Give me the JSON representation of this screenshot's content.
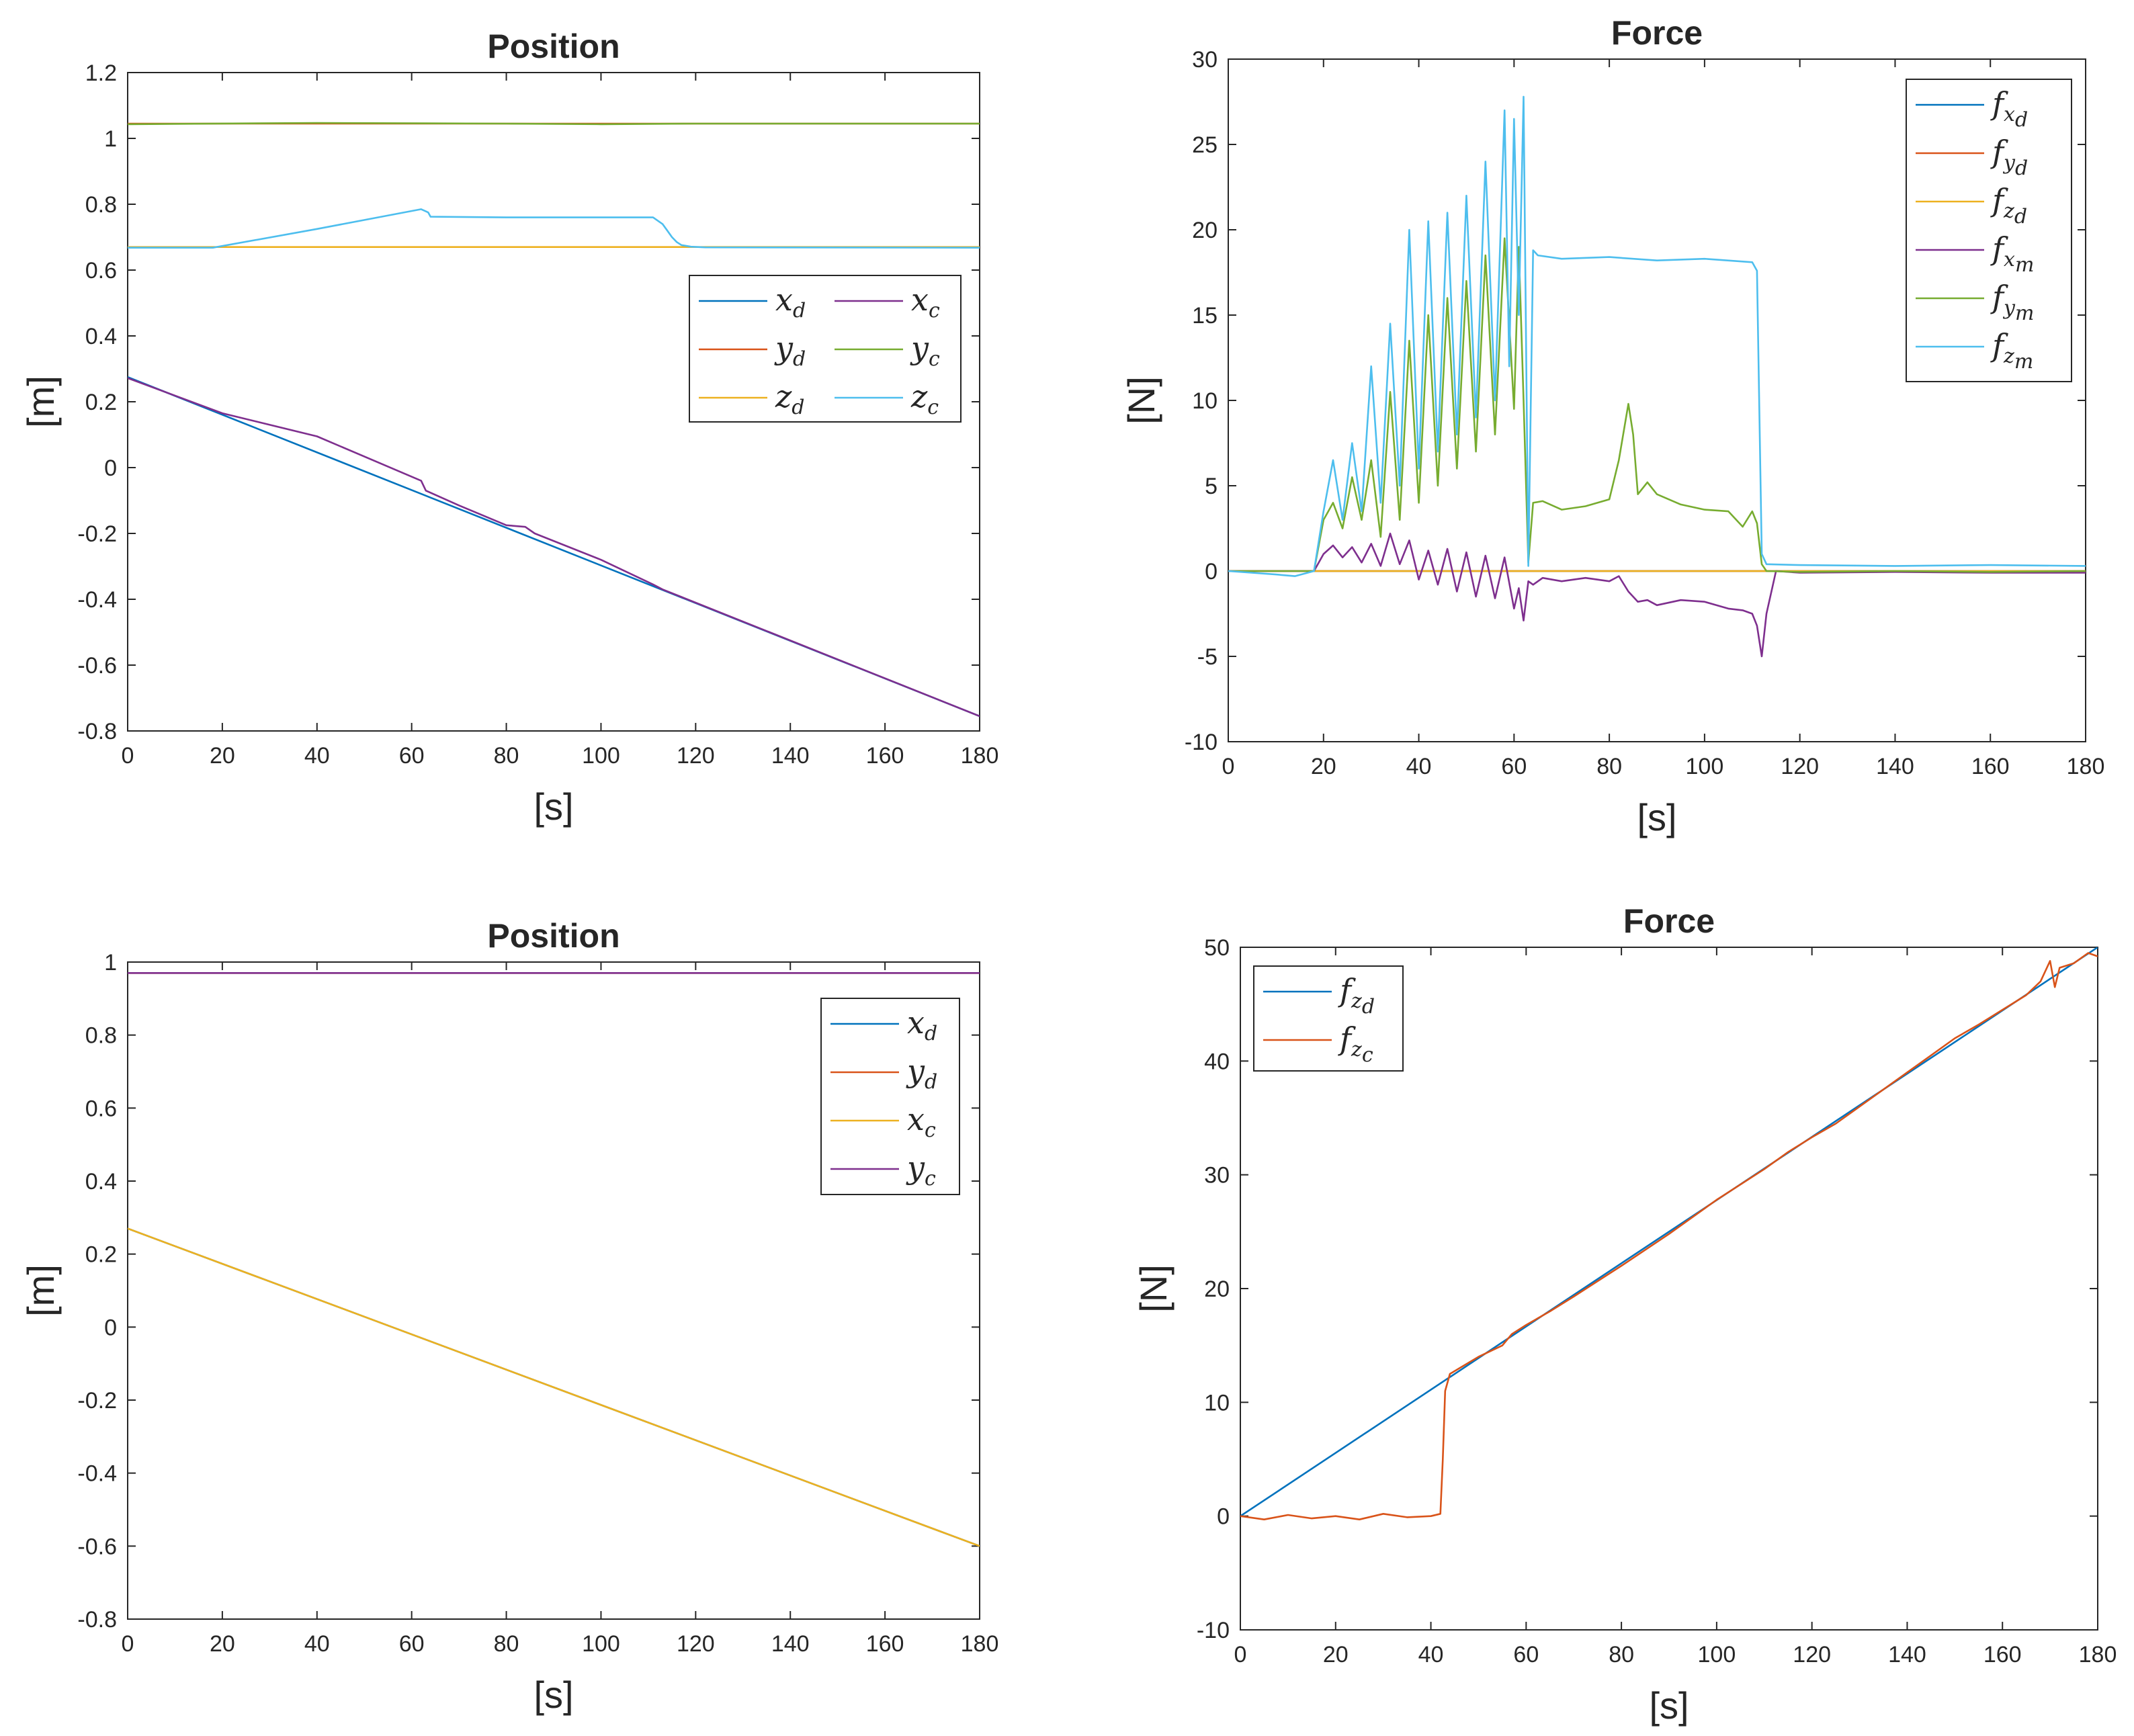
{
  "chart_data": [
    {
      "type": "line",
      "title": "Position",
      "xlabel": "[s]",
      "ylabel": "[m]",
      "xlim": [
        0,
        180
      ],
      "ylim": [
        -0.8,
        1.2
      ],
      "xticks": [
        "0",
        "20",
        "40",
        "60",
        "80",
        "100",
        "120",
        "140",
        "160",
        "180"
      ],
      "yticks": [
        "-0.8",
        "-0.6",
        "-0.4",
        "-0.2",
        "0",
        "0.2",
        "0.4",
        "0.6",
        "0.8",
        "1",
        "1.2"
      ],
      "legend": {
        "position": "middle-right",
        "columns": 2
      },
      "series": [
        {
          "name": "x_d",
          "base": "x",
          "sub": "d",
          "color": "#0072BD",
          "x": [
            0,
            180
          ],
          "y": [
            0.275,
            -0.755
          ]
        },
        {
          "name": "y_d",
          "base": "y",
          "sub": "d",
          "color": "#D95319",
          "x": [
            0,
            180
          ],
          "y": [
            1.045,
            1.045
          ]
        },
        {
          "name": "z_d",
          "base": "z",
          "sub": "d",
          "color": "#EDB120",
          "x": [
            0,
            180
          ],
          "y": [
            0.67,
            0.67
          ]
        },
        {
          "name": "x_c",
          "base": "x",
          "sub": "c",
          "color": "#7E2F8E",
          "x": [
            0,
            20,
            40,
            62,
            63,
            70,
            80,
            84,
            86,
            100,
            111,
            113,
            180
          ],
          "y": [
            0.272,
            0.165,
            0.095,
            -0.04,
            -0.07,
            -0.115,
            -0.175,
            -0.18,
            -0.2,
            -0.28,
            -0.355,
            -0.37,
            -0.755
          ]
        },
        {
          "name": "y_c",
          "base": "y",
          "sub": "c",
          "color": "#77AC30",
          "x": [
            0,
            40,
            80,
            100,
            110,
            120,
            180
          ],
          "y": [
            1.043,
            1.047,
            1.045,
            1.043,
            1.044,
            1.045,
            1.045
          ]
        },
        {
          "name": "z_c",
          "base": "z",
          "sub": "c",
          "color": "#4DBEEE",
          "x": [
            0,
            18,
            40,
            62,
            63.5,
            64,
            80,
            100,
            111,
            113,
            114,
            115,
            116,
            117,
            119,
            122,
            180
          ],
          "y": [
            0.668,
            0.668,
            0.725,
            0.785,
            0.775,
            0.762,
            0.76,
            0.76,
            0.76,
            0.74,
            0.72,
            0.7,
            0.685,
            0.676,
            0.671,
            0.669,
            0.668
          ]
        }
      ]
    },
    {
      "type": "line",
      "title": "Force",
      "xlabel": "[s]",
      "ylabel": "[N]",
      "xlim": [
        0,
        180
      ],
      "ylim": [
        -10,
        30
      ],
      "xticks": [
        "0",
        "20",
        "40",
        "60",
        "80",
        "100",
        "120",
        "140",
        "160",
        "180"
      ],
      "yticks": [
        "-10",
        "-5",
        "0",
        "5",
        "10",
        "15",
        "20",
        "25",
        "30"
      ],
      "legend": {
        "position": "top-right",
        "columns": 1
      },
      "series": [
        {
          "name": "f_x_d",
          "base": "f",
          "sub": "x",
          "subsub": "d",
          "color": "#0072BD",
          "x": [
            0,
            180
          ],
          "y": [
            0,
            0
          ]
        },
        {
          "name": "f_y_d",
          "base": "f",
          "sub": "y",
          "subsub": "d",
          "color": "#D95319",
          "x": [
            0,
            180
          ],
          "y": [
            0,
            0
          ]
        },
        {
          "name": "f_z_d",
          "base": "f",
          "sub": "z",
          "subsub": "d",
          "color": "#EDB120",
          "x": [
            0,
            180
          ],
          "y": [
            0,
            0
          ]
        },
        {
          "name": "f_x_m",
          "base": "f",
          "sub": "x",
          "subsub": "m",
          "color": "#7E2F8E",
          "x": [
            0,
            18,
            20,
            22,
            24,
            26,
            28,
            30,
            32,
            34,
            36,
            38,
            40,
            42,
            44,
            46,
            48,
            50,
            52,
            54,
            56,
            58,
            60,
            61,
            62,
            63,
            64,
            66,
            70,
            75,
            80,
            82,
            84,
            86,
            88,
            90,
            95,
            100,
            105,
            108,
            110,
            111,
            112,
            113,
            115,
            120,
            140,
            160,
            180
          ],
          "y": [
            0,
            0,
            1,
            1.5,
            0.8,
            1.4,
            0.5,
            1.6,
            0.3,
            2.2,
            0.4,
            1.8,
            -0.5,
            1.2,
            -0.8,
            1.3,
            -1.2,
            1.1,
            -1.5,
            0.9,
            -1.6,
            0.8,
            -2.2,
            -1,
            -2.9,
            -0.6,
            -0.8,
            -0.4,
            -0.6,
            -0.4,
            -0.6,
            -0.3,
            -1.2,
            -1.8,
            -1.7,
            -2,
            -1.7,
            -1.8,
            -2.2,
            -2.3,
            -2.5,
            -3.2,
            -5.0,
            -2.5,
            0,
            -0.1,
            -0.05,
            -0.1,
            -0.1
          ]
        },
        {
          "name": "f_y_m",
          "base": "f",
          "sub": "y",
          "subsub": "m",
          "color": "#77AC30",
          "x": [
            0,
            18,
            20,
            22,
            24,
            26,
            28,
            30,
            32,
            34,
            36,
            38,
            40,
            42,
            44,
            46,
            48,
            50,
            52,
            54,
            56,
            58,
            60,
            61,
            62,
            63,
            64,
            66,
            70,
            75,
            80,
            82,
            84,
            85,
            86,
            88,
            90,
            95,
            100,
            105,
            108,
            110,
            111,
            112,
            113,
            120,
            140,
            160,
            180
          ],
          "y": [
            0,
            0,
            3,
            4,
            2.5,
            5.5,
            3,
            6.5,
            2,
            10.5,
            3,
            13.5,
            4,
            15,
            5,
            16,
            6,
            17,
            7,
            18.5,
            8,
            19.5,
            9.5,
            19,
            10,
            0.5,
            4,
            4.1,
            3.6,
            3.8,
            4.2,
            6.5,
            9.8,
            8,
            4.5,
            5.2,
            4.5,
            3.9,
            3.6,
            3.5,
            2.6,
            3.5,
            2.8,
            0.4,
            0,
            -0.05,
            0,
            -0.05,
            0
          ]
        },
        {
          "name": "f_z_m",
          "base": "f",
          "sub": "z",
          "subsub": "m",
          "color": "#4DBEEE",
          "x": [
            0,
            10,
            14,
            18,
            20,
            22,
            24,
            26,
            28,
            30,
            32,
            34,
            36,
            38,
            40,
            42,
            44,
            46,
            48,
            50,
            52,
            54,
            56,
            58,
            59,
            60,
            61,
            62,
            63,
            64,
            65,
            70,
            80,
            90,
            100,
            110,
            111,
            112,
            113,
            120,
            140,
            160,
            180
          ],
          "y": [
            0,
            -0.2,
            -0.3,
            0,
            3.5,
            6.5,
            3,
            7.5,
            3.5,
            12,
            4,
            14.5,
            5,
            20,
            6,
            20.5,
            7,
            21,
            8,
            22,
            9,
            24,
            10,
            27,
            12,
            26.5,
            15,
            27.8,
            0.3,
            18.8,
            18.5,
            18.3,
            18.4,
            18.2,
            18.3,
            18.1,
            17.6,
            1,
            0.4,
            0.35,
            0.3,
            0.35,
            0.3
          ]
        }
      ]
    },
    {
      "type": "line",
      "title": "Position",
      "xlabel": "[s]",
      "ylabel": "[m]",
      "xlim": [
        0,
        180
      ],
      "ylim": [
        -0.8,
        1
      ],
      "xticks": [
        "0",
        "20",
        "40",
        "60",
        "80",
        "100",
        "120",
        "140",
        "160",
        "180"
      ],
      "yticks": [
        "-0.8",
        "-0.6",
        "-0.4",
        "-0.2",
        "0",
        "0.2",
        "0.4",
        "0.6",
        "0.8",
        "1"
      ],
      "legend": {
        "position": "top-right",
        "columns": 1
      },
      "series": [
        {
          "name": "x_d",
          "base": "x",
          "sub": "d",
          "color": "#0072BD",
          "x": [
            0,
            180
          ],
          "y": [
            0.27,
            -0.6
          ]
        },
        {
          "name": "y_d",
          "base": "y",
          "sub": "d",
          "color": "#D95319",
          "x": [
            0,
            180
          ],
          "y": [
            0.97,
            0.97
          ]
        },
        {
          "name": "x_c",
          "base": "x",
          "sub": "c",
          "color": "#EDB120",
          "x": [
            0,
            180
          ],
          "y": [
            0.27,
            -0.6
          ]
        },
        {
          "name": "y_c",
          "base": "y",
          "sub": "c",
          "color": "#7E2F8E",
          "x": [
            0,
            180
          ],
          "y": [
            0.97,
            0.97
          ]
        }
      ]
    },
    {
      "type": "line",
      "title": "Force",
      "xlabel": "[s]",
      "ylabel": "[N]",
      "xlim": [
        0,
        180
      ],
      "ylim": [
        -10,
        50
      ],
      "xticks": [
        "0",
        "20",
        "40",
        "60",
        "80",
        "100",
        "120",
        "140",
        "160",
        "180"
      ],
      "yticks": [
        "-10",
        "0",
        "10",
        "20",
        "30",
        "40",
        "50"
      ],
      "legend": {
        "position": "top-left",
        "columns": 1
      },
      "series": [
        {
          "name": "f_z_d",
          "base": "f",
          "sub": "z",
          "subsub": "d",
          "color": "#0072BD",
          "x": [
            0,
            180
          ],
          "y": [
            0,
            50
          ]
        },
        {
          "name": "f_z_c",
          "base": "f",
          "sub": "z",
          "subsub": "c",
          "color": "#D95319",
          "x": [
            0,
            5,
            10,
            15,
            20,
            25,
            30,
            35,
            40,
            42,
            42.5,
            43,
            44,
            46,
            50,
            55,
            57,
            60,
            65,
            70,
            80,
            90,
            100,
            110,
            115,
            120,
            125,
            130,
            135,
            140,
            145,
            150,
            155,
            160,
            165,
            168,
            170,
            171,
            172,
            175,
            178,
            180
          ],
          "y": [
            0,
            -0.3,
            0.1,
            -0.2,
            0,
            -0.3,
            0.2,
            -0.1,
            0,
            0.2,
            5,
            11,
            12.5,
            13,
            14,
            15,
            16,
            16.8,
            18,
            19.3,
            22,
            24.8,
            27.8,
            30.5,
            32,
            33.3,
            34.5,
            36,
            37.5,
            39,
            40.5,
            42,
            43.2,
            44.5,
            45.8,
            47,
            48.8,
            46.5,
            48.2,
            48.6,
            49.5,
            49.2
          ]
        }
      ]
    }
  ]
}
